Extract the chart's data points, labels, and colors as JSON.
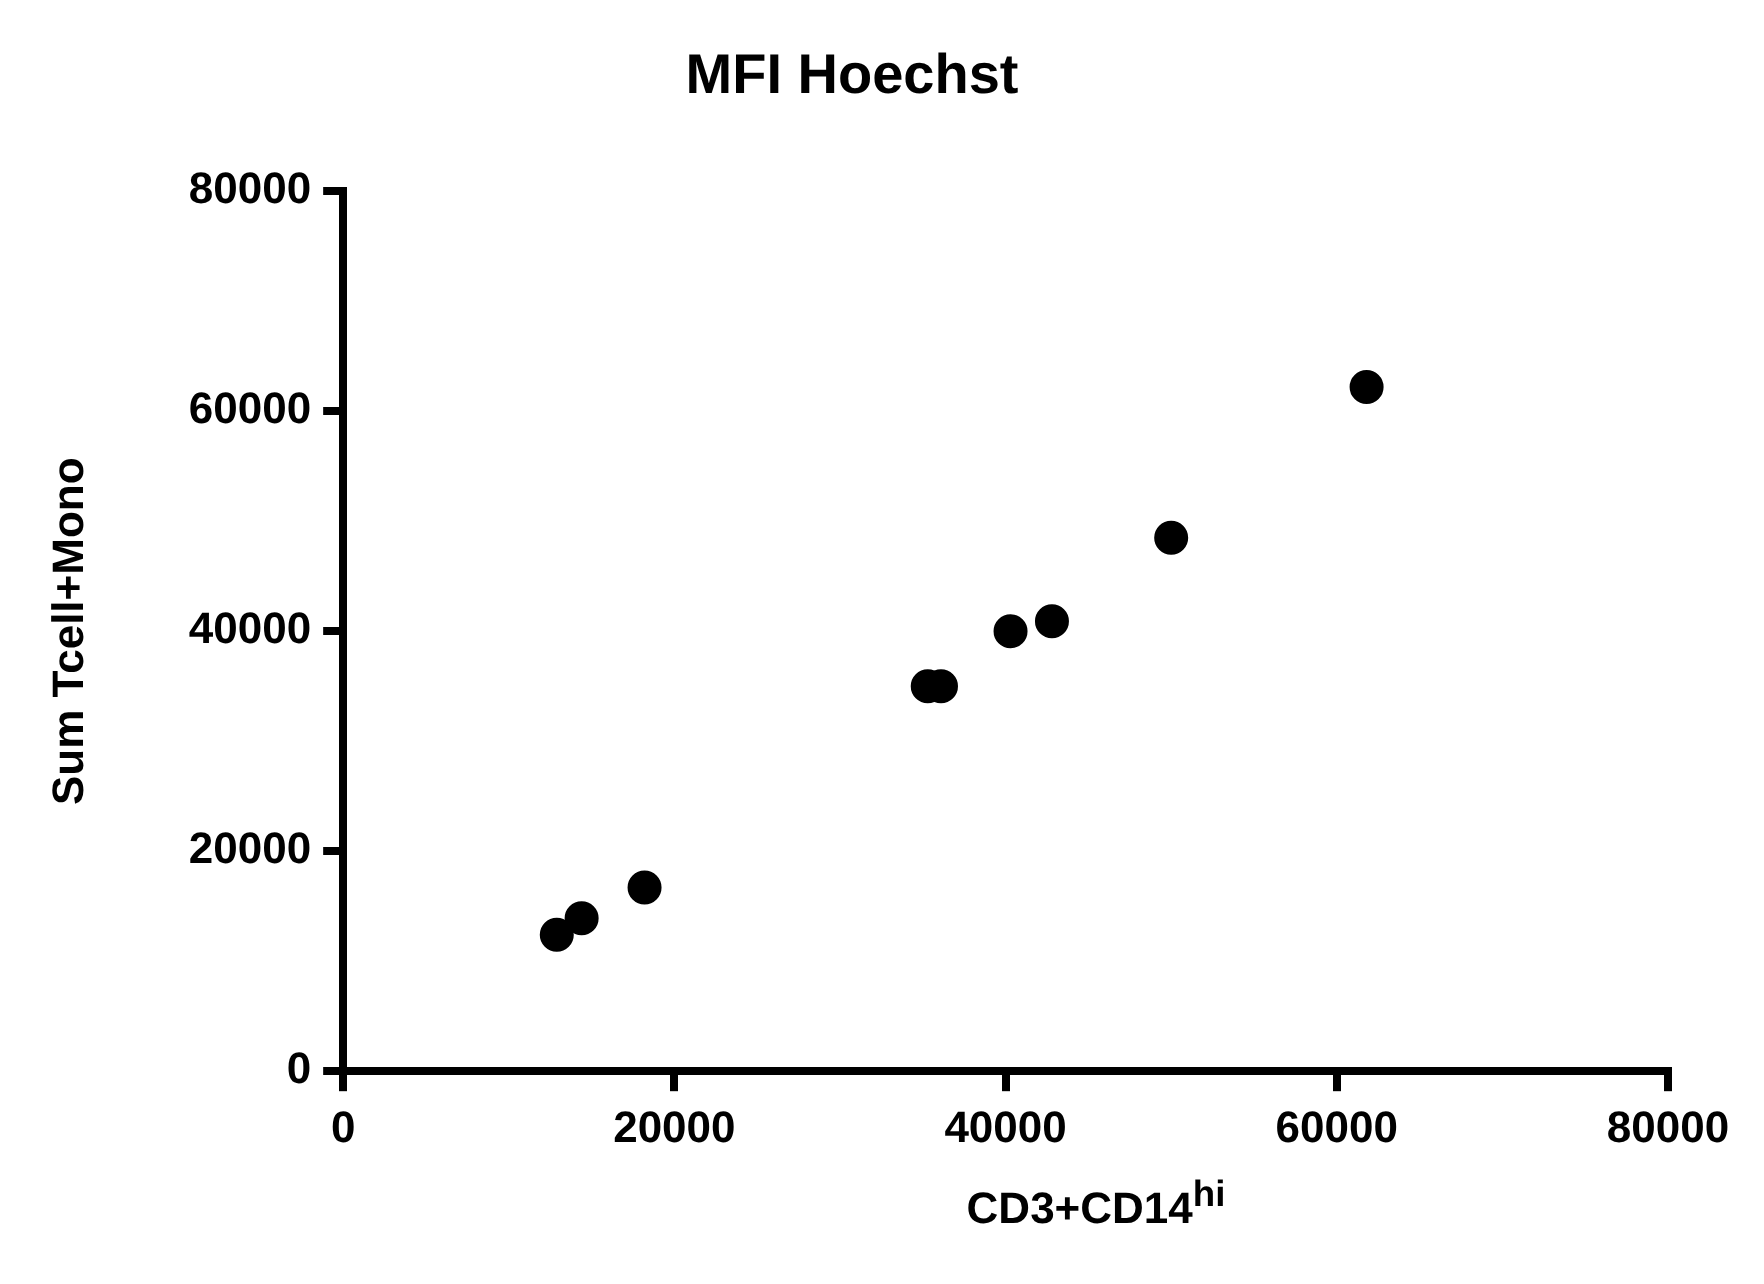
{
  "chart_data": {
    "type": "scatter",
    "title": "MFI Hoechst",
    "xlabel": "CD3+CD14$^{hi}$",
    "ylabel": "Sum Tcell+Mono",
    "x": [
      12900,
      14400,
      18200,
      35300,
      36100,
      40300,
      42800,
      50000,
      61800
    ],
    "series": [
      {
        "color": "#000000",
        "values": [
          12400,
          13900,
          16700,
          35000,
          35000,
          40000,
          40900,
          48500,
          62200
        ]
      }
    ],
    "xlim": [
      0,
      80000
    ],
    "ylim": [
      0,
      80000
    ],
    "xticks": [
      0,
      20000,
      40000,
      60000,
      80000
    ],
    "yticks": [
      0,
      20000,
      40000,
      60000,
      80000
    ],
    "grid": false,
    "legend": false,
    "marker": "circle"
  }
}
